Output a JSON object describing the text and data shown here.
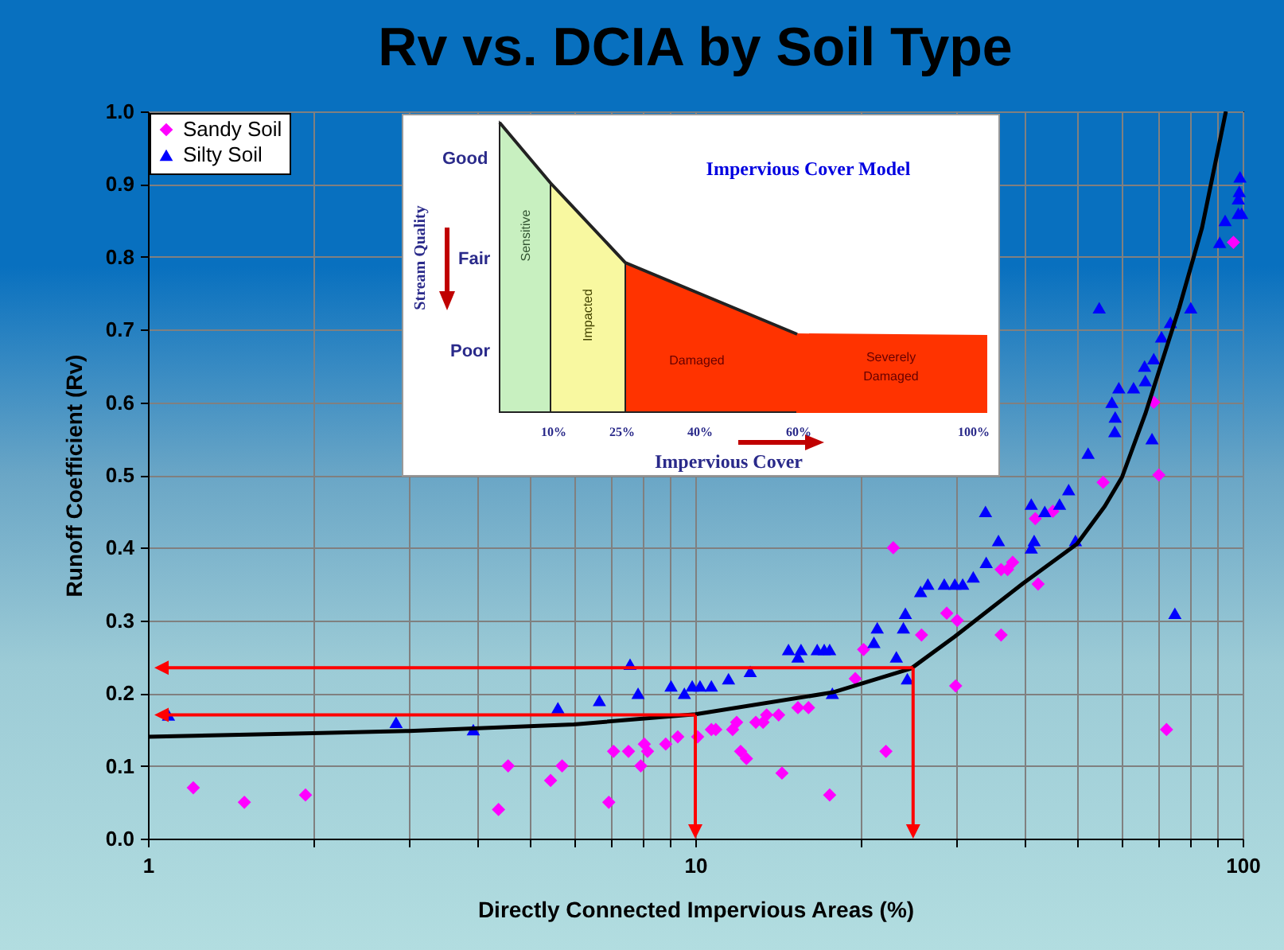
{
  "chart_data": {
    "type": "scatter",
    "title": "Rv vs. DCIA by Soil Type",
    "xlabel": "Directly Connected Impervious Areas (%)",
    "ylabel": "Runoff Coefficient (Rv)",
    "log": "x",
    "grid": true,
    "legend": "top left",
    "xlim": [
      1,
      100
    ],
    "xticks": [
      1,
      {
        "value": 2,
        "label": null
      },
      {
        "value": 3,
        "label": null
      },
      {
        "value": 4,
        "label": null
      },
      {
        "value": 5,
        "label": null
      },
      {
        "value": 6,
        "label": null
      },
      {
        "value": 7,
        "label": null
      },
      {
        "value": 8,
        "label": null
      },
      {
        "value": 9,
        "label": null
      },
      10,
      {
        "value": 20,
        "label": null
      },
      {
        "value": 30,
        "label": null
      },
      {
        "value": 40,
        "label": null
      },
      {
        "value": 50,
        "label": null
      },
      {
        "value": 60,
        "label": null
      },
      {
        "value": 70,
        "label": null
      },
      {
        "value": 80,
        "label": null
      },
      {
        "value": 90,
        "label": null
      },
      100
    ],
    "ylim": [
      0,
      1
    ],
    "yticks": [
      {
        "value": 0,
        "label": "0.0"
      },
      0.1,
      0.2,
      0.3,
      0.4,
      0.5,
      0.6,
      0.7,
      0.8,
      0.9,
      {
        "value": 1,
        "label": "1.0"
      }
    ],
    "annotations": [
      "Impervious Cover Model",
      "Good",
      "Fair",
      "Poor",
      "Stream Quality",
      "Sensitive",
      "Impacted",
      "Damaged",
      "Severely Damaged",
      "10%",
      "25%",
      "40%",
      "60%",
      "100%",
      "Impervious Cover"
    ],
    "series": [
      {
        "name": "Sandy Soil",
        "color": "#ff00ff",
        "marker": "diamond",
        "x": [
          1.21,
          1.5,
          1.94,
          4.37,
          4.55,
          5.44,
          5.71,
          6.95,
          7.09,
          7.55,
          7.95,
          8.07,
          8.18,
          8.83,
          9.29,
          10.1,
          10.7,
          10.9,
          11.7,
          11.9,
          12.1,
          12.4,
          12.9,
          13.3,
          13.5,
          14.2,
          14.4,
          15.4,
          16.1,
          17.6,
          19.6,
          20.3,
          22.3,
          23.0,
          25.9,
          28.8,
          29.9,
          30.1,
          36.2,
          36.2,
          37.2,
          38.0,
          41.8,
          42.3,
          45.0,
          55.6,
          68.8,
          70.3,
          72.6,
          96.2
        ],
        "values": [
          0.07,
          0.05,
          0.06,
          0.04,
          0.1,
          0.08,
          0.1,
          0.05,
          0.12,
          0.12,
          0.1,
          0.13,
          0.12,
          0.13,
          0.14,
          0.14,
          0.15,
          0.15,
          0.15,
          0.16,
          0.12,
          0.11,
          0.16,
          0.16,
          0.17,
          0.17,
          0.09,
          0.18,
          0.18,
          0.06,
          0.22,
          0.26,
          0.12,
          0.4,
          0.28,
          0.31,
          0.21,
          0.3,
          0.28,
          0.37,
          0.37,
          0.38,
          0.44,
          0.35,
          0.45,
          0.49,
          0.6,
          0.5,
          0.15,
          0.82
        ]
      },
      {
        "name": "Silty Soil",
        "color": "#0000ff",
        "marker": "triangle",
        "x": [
          1.09,
          2.84,
          3.93,
          5.61,
          6.68,
          7.6,
          7.86,
          9.03,
          9.55,
          9.87,
          10.2,
          10.7,
          11.5,
          12.6,
          14.8,
          15.4,
          15.6,
          16.7,
          17.2,
          17.6,
          17.8,
          21.2,
          21.5,
          23.3,
          24.0,
          24.2,
          24.4,
          25.8,
          26.6,
          28.5,
          29.8,
          30.8,
          32.2,
          33.9,
          34.0,
          35.8,
          41.1,
          41.1,
          41.6,
          43.5,
          46.3,
          48.1,
          49.5,
          52.2,
          54.7,
          57.7,
          58.4,
          58.5,
          59.4,
          63.2,
          66.2,
          66.4,
          68.3,
          68.8,
          71.1,
          73.8,
          75.2,
          80.4,
          90.8,
          92.9,
          98.2,
          98.2,
          98.6,
          98.9,
          99.6
        ],
        "values": [
          0.17,
          0.16,
          0.15,
          0.18,
          0.19,
          0.24,
          0.2,
          0.21,
          0.2,
          0.21,
          0.21,
          0.21,
          0.22,
          0.23,
          0.26,
          0.25,
          0.26,
          0.26,
          0.26,
          0.26,
          0.2,
          0.27,
          0.29,
          0.25,
          0.29,
          0.31,
          0.22,
          0.34,
          0.35,
          0.35,
          0.35,
          0.35,
          0.36,
          0.45,
          0.38,
          0.41,
          0.4,
          0.46,
          0.41,
          0.45,
          0.46,
          0.48,
          0.41,
          0.53,
          0.73,
          0.6,
          0.56,
          0.58,
          0.62,
          0.62,
          0.65,
          0.63,
          0.55,
          0.66,
          0.69,
          0.71,
          0.31,
          0.73,
          0.82,
          0.85,
          0.86,
          0.88,
          0.89,
          0.91,
          0.86
        ]
      },
      {
        "type": "line",
        "color": "#000000",
        "x": [
          1,
          2,
          3,
          6,
          10,
          17.8,
          24.8,
          29.8,
          39.7,
          49.8,
          56,
          60.2,
          66.4,
          76.6,
          84.3,
          93.2
        ],
        "values": [
          0.14,
          0.145,
          0.148,
          0.157,
          0.171,
          0.201,
          0.234,
          0.278,
          0.351,
          0.405,
          0.457,
          0.497,
          0.584,
          0.73,
          0.84,
          1.0
        ]
      }
    ],
    "ref_lines": [
      {
        "axis": "x",
        "value": 25,
        "color": "#ff0000"
      },
      {
        "axis": "y",
        "value": 0.235,
        "color": "#ff0000"
      },
      {
        "axis": "x",
        "value": 10,
        "color": "#ff0000"
      },
      {
        "axis": "y",
        "value": 0.17,
        "color": "#ff0000"
      }
    ]
  }
}
